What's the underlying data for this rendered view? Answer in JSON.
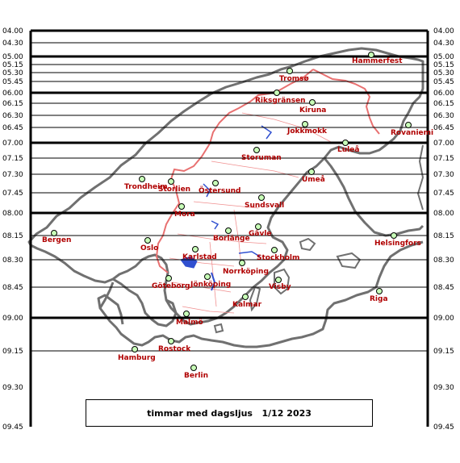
{
  "title": "timmar med dagsljus",
  "date": "1/12 2023",
  "hour_lines": [
    "04.00",
    "04.30",
    "05.00",
    "05.15",
    "05.30",
    "05.45",
    "06.00",
    "06.15",
    "06.30",
    "06.45",
    "07.00",
    "07.15",
    "07.30",
    "07.45",
    "08.00",
    "08.15",
    "08.30",
    "08.45",
    "09.00",
    "09.15",
    "09.30",
    "09.45"
  ],
  "thick_lines": [
    "04.00",
    "05.00",
    "06.00",
    "07.00",
    "08.00",
    "09.00"
  ],
  "cities": [
    {
      "name": "Hammerfest",
      "hours": "05.00"
    },
    {
      "name": "Tromsø",
      "hours": "05.20"
    },
    {
      "name": "Riksgränsen",
      "hours": "06.00"
    },
    {
      "name": "Kiruna",
      "hours": "06.10"
    },
    {
      "name": "Jokkmokk",
      "hours": "06.40"
    },
    {
      "name": "Rovaniemi",
      "hours": "06.40"
    },
    {
      "name": "Luleå",
      "hours": "07.00"
    },
    {
      "name": "Storuman",
      "hours": "07.05"
    },
    {
      "name": "Umeå",
      "hours": "07.25"
    },
    {
      "name": "Trondheim",
      "hours": "07.30"
    },
    {
      "name": "Storlien",
      "hours": "07.30"
    },
    {
      "name": "Östersund",
      "hours": "07.35"
    },
    {
      "name": "Sundsvall",
      "hours": "07.45"
    },
    {
      "name": "Mora",
      "hours": "07.55"
    },
    {
      "name": "Bergen",
      "hours": "08.10"
    },
    {
      "name": "Gävle",
      "hours": "08.05"
    },
    {
      "name": "Borlänge",
      "hours": "08.10"
    },
    {
      "name": "Helsingfors",
      "hours": "08.15"
    },
    {
      "name": "Oslo",
      "hours": "08.15"
    },
    {
      "name": "Karlstad",
      "hours": "08.25"
    },
    {
      "name": "Stockholm",
      "hours": "08.25"
    },
    {
      "name": "Norrköping",
      "hours": "08.30"
    },
    {
      "name": "Göteborg",
      "hours": "08.40"
    },
    {
      "name": "Jönköping",
      "hours": "08.40"
    },
    {
      "name": "Visby",
      "hours": "08.40"
    },
    {
      "name": "Riga",
      "hours": "08.45"
    },
    {
      "name": "Kalmar",
      "hours": "08.50"
    },
    {
      "name": "Malmö",
      "hours": "09.00"
    },
    {
      "name": "Rostock",
      "hours": "09.10"
    },
    {
      "name": "Hamburg",
      "hours": "09.15"
    },
    {
      "name": "Berlin",
      "hours": "09.20"
    }
  ],
  "colors": {
    "line": "#000000",
    "coast": "#707070",
    "border": "#e87070",
    "lake": "#3050d0",
    "marker": "#c8ffb8",
    "city": "#b00000"
  }
}
